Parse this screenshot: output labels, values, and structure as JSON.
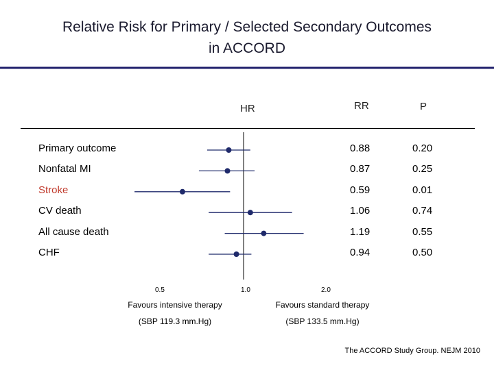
{
  "title_line1": "Relative Risk for Primary / Selected Secondary Outcomes",
  "title_line2": "in ACCORD",
  "colors": {
    "title_rule": "#1f1f6b",
    "marker": "#1f2a6b",
    "stroke_label": "#c0392b"
  },
  "headers": {
    "hr": "HR",
    "rr": "RR",
    "p": "P"
  },
  "chart_data": {
    "type": "forest",
    "scale": "log",
    "xlim": [
      0.5,
      2.0
    ],
    "reference": 1.0,
    "tick_labels": [
      "0.5",
      "1.0",
      "2.0"
    ],
    "tick_values": [
      0.5,
      1.0,
      2.0
    ],
    "rows": [
      {
        "label": "Primary outcome",
        "rr": 0.88,
        "ci": [
          0.73,
          1.06
        ],
        "rr_text": "0.88",
        "p_text": "0.20",
        "highlight": false
      },
      {
        "label": "Nonfatal MI",
        "rr": 0.87,
        "ci": [
          0.68,
          1.1
        ],
        "rr_text": "0.87",
        "p_text": "0.25",
        "highlight": false
      },
      {
        "label": "Stroke",
        "rr": 0.59,
        "ci": [
          0.39,
          0.89
        ],
        "rr_text": "0.59",
        "p_text": "0.01",
        "highlight": true
      },
      {
        "label": "CV death",
        "rr": 1.06,
        "ci": [
          0.74,
          1.52
        ],
        "rr_text": "1.06",
        "p_text": "0.74",
        "highlight": false
      },
      {
        "label": "All cause death",
        "rr": 1.19,
        "ci": [
          0.85,
          1.68
        ],
        "rr_text": "1.19",
        "p_text": "0.55",
        "highlight": false
      },
      {
        "label": "CHF",
        "rr": 0.94,
        "ci": [
          0.74,
          1.07
        ],
        "rr_text": "0.94",
        "p_text": "0.50",
        "highlight": false
      }
    ]
  },
  "favours_left": {
    "line1": "Favours intensive therapy",
    "line2": "(SBP 119.3 mm.Hg)"
  },
  "favours_right": {
    "line1": "Favours standard therapy",
    "line2": "(SBP 133.5 mm.Hg)"
  },
  "citation": "The ACCORD Study Group. NEJM 2010"
}
